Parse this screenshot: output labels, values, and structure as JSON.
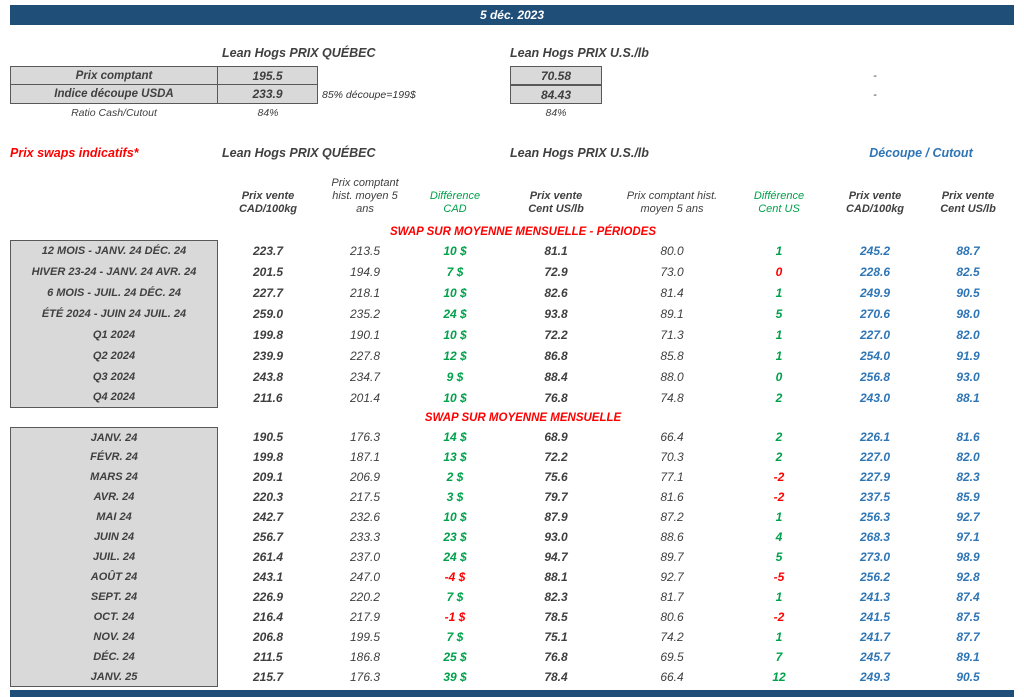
{
  "colors": {
    "navy": "#1F4E79",
    "gray": "#D9D9D9",
    "green": "#00A14B",
    "red": "#FF0000",
    "blue": "#2E75B6"
  },
  "page": {
    "date": "5 déc. 2023"
  },
  "spot": {
    "quebec_title": "Lean Hogs PRIX QUÉBEC",
    "us_title": "Lean Hogs PRIX U.S./lb",
    "rows": [
      {
        "label": "Prix comptant",
        "qc": "195.5",
        "note": "",
        "us": "70.58",
        "right": "-"
      },
      {
        "label": "Indice découpe USDA",
        "qc": "233.9",
        "note": "85% découpe=199$",
        "us": "84.43",
        "right": "-"
      },
      {
        "label": "Ratio Cash/Cutout",
        "qc": "84%",
        "note": "",
        "us": "84%",
        "right": ""
      }
    ]
  },
  "swaps": {
    "title": "Prix swaps indicatifs*",
    "quebec_title": "Lean Hogs PRIX QUÉBEC",
    "us_title": "Lean Hogs PRIX U.S./lb",
    "cutout_title": "Découpe / Cutout",
    "columns": [
      "Prix vente\nCAD/100kg",
      "Prix comptant\nhist. moyen 5\nans",
      "Différence\nCAD",
      "Prix vente\nCent US/lb",
      "Prix comptant hist.\nmoyen 5 ans",
      "Différence\nCent US",
      "Prix vente\nCAD/100kg",
      "Prix vente\nCent US/lb"
    ],
    "sections": [
      {
        "header": "SWAP SUR MOYENNE MENSUELLE - PÉRIODES",
        "rows": [
          {
            "label": "12 MOIS - JANV. 24 DÉC. 24",
            "qc_sell": "223.7",
            "qc_hist": "213.5",
            "diff_cad": "10 $",
            "diff_cad_color": "green",
            "us_sell": "81.1",
            "us_hist": "80.0",
            "diff_us": "1",
            "diff_us_color": "green",
            "cutout_cad": "245.2",
            "cutout_us": "88.7"
          },
          {
            "label": "HIVER 23-24 -  JANV. 24 AVR. 24",
            "qc_sell": "201.5",
            "qc_hist": "194.9",
            "diff_cad": "7 $",
            "diff_cad_color": "green",
            "us_sell": "72.9",
            "us_hist": "73.0",
            "diff_us": "0",
            "diff_us_color": "red",
            "cutout_cad": "228.6",
            "cutout_us": "82.5"
          },
          {
            "label": "6 MOIS -  JUIL. 24 DÉC. 24",
            "qc_sell": "227.7",
            "qc_hist": "218.1",
            "diff_cad": "10 $",
            "diff_cad_color": "green",
            "us_sell": "82.6",
            "us_hist": "81.4",
            "diff_us": "1",
            "diff_us_color": "green",
            "cutout_cad": "249.9",
            "cutout_us": "90.5"
          },
          {
            "label": "ÉTÉ 2024 - JUIN 24 JUIL. 24",
            "qc_sell": "259.0",
            "qc_hist": "235.2",
            "diff_cad": "24 $",
            "diff_cad_color": "green",
            "us_sell": "93.8",
            "us_hist": "89.1",
            "diff_us": "5",
            "diff_us_color": "green",
            "cutout_cad": "270.6",
            "cutout_us": "98.0"
          },
          {
            "label": "Q1 2024",
            "qc_sell": "199.8",
            "qc_hist": "190.1",
            "diff_cad": "10 $",
            "diff_cad_color": "green",
            "us_sell": "72.2",
            "us_hist": "71.3",
            "diff_us": "1",
            "diff_us_color": "green",
            "cutout_cad": "227.0",
            "cutout_us": "82.0"
          },
          {
            "label": "Q2 2024",
            "qc_sell": "239.9",
            "qc_hist": "227.8",
            "diff_cad": "12 $",
            "diff_cad_color": "green",
            "us_sell": "86.8",
            "us_hist": "85.8",
            "diff_us": "1",
            "diff_us_color": "green",
            "cutout_cad": "254.0",
            "cutout_us": "91.9"
          },
          {
            "label": "Q3 2024",
            "qc_sell": "243.8",
            "qc_hist": "234.7",
            "diff_cad": "9 $",
            "diff_cad_color": "green",
            "us_sell": "88.4",
            "us_hist": "88.0",
            "diff_us": "0",
            "diff_us_color": "green",
            "cutout_cad": "256.8",
            "cutout_us": "93.0"
          },
          {
            "label": "Q4 2024",
            "qc_sell": "211.6",
            "qc_hist": "201.4",
            "diff_cad": "10 $",
            "diff_cad_color": "green",
            "us_sell": "76.8",
            "us_hist": "74.8",
            "diff_us": "2",
            "diff_us_color": "green",
            "cutout_cad": "243.0",
            "cutout_us": "88.1"
          }
        ]
      },
      {
        "header": "SWAP SUR MOYENNE MENSUELLE",
        "rows": [
          {
            "label": "JANV. 24",
            "qc_sell": "190.5",
            "qc_hist": "176.3",
            "diff_cad": "14 $",
            "diff_cad_color": "green",
            "us_sell": "68.9",
            "us_hist": "66.4",
            "diff_us": "2",
            "diff_us_color": "green",
            "cutout_cad": "226.1",
            "cutout_us": "81.6"
          },
          {
            "label": "FÉVR. 24",
            "qc_sell": "199.8",
            "qc_hist": "187.1",
            "diff_cad": "13 $",
            "diff_cad_color": "green",
            "us_sell": "72.2",
            "us_hist": "70.3",
            "diff_us": "2",
            "diff_us_color": "green",
            "cutout_cad": "227.0",
            "cutout_us": "82.0"
          },
          {
            "label": "MARS 24",
            "qc_sell": "209.1",
            "qc_hist": "206.9",
            "diff_cad": "2 $",
            "diff_cad_color": "green",
            "us_sell": "75.6",
            "us_hist": "77.1",
            "diff_us": "-2",
            "diff_us_color": "red",
            "cutout_cad": "227.9",
            "cutout_us": "82.3"
          },
          {
            "label": "AVR. 24",
            "qc_sell": "220.3",
            "qc_hist": "217.5",
            "diff_cad": "3 $",
            "diff_cad_color": "green",
            "us_sell": "79.7",
            "us_hist": "81.6",
            "diff_us": "-2",
            "diff_us_color": "red",
            "cutout_cad": "237.5",
            "cutout_us": "85.9"
          },
          {
            "label": "MAI 24",
            "qc_sell": "242.7",
            "qc_hist": "232.6",
            "diff_cad": "10 $",
            "diff_cad_color": "green",
            "us_sell": "87.9",
            "us_hist": "87.2",
            "diff_us": "1",
            "diff_us_color": "green",
            "cutout_cad": "256.3",
            "cutout_us": "92.7"
          },
          {
            "label": "JUIN 24",
            "qc_sell": "256.7",
            "qc_hist": "233.3",
            "diff_cad": "23 $",
            "diff_cad_color": "green",
            "us_sell": "93.0",
            "us_hist": "88.6",
            "diff_us": "4",
            "diff_us_color": "green",
            "cutout_cad": "268.3",
            "cutout_us": "97.1"
          },
          {
            "label": "JUIL. 24",
            "qc_sell": "261.4",
            "qc_hist": "237.0",
            "diff_cad": "24 $",
            "diff_cad_color": "green",
            "us_sell": "94.7",
            "us_hist": "89.7",
            "diff_us": "5",
            "diff_us_color": "green",
            "cutout_cad": "273.0",
            "cutout_us": "98.9"
          },
          {
            "label": "AOÛT 24",
            "qc_sell": "243.1",
            "qc_hist": "247.0",
            "diff_cad": "-4 $",
            "diff_cad_color": "red",
            "us_sell": "88.1",
            "us_hist": "92.7",
            "diff_us": "-5",
            "diff_us_color": "red",
            "cutout_cad": "256.2",
            "cutout_us": "92.8"
          },
          {
            "label": "SEPT. 24",
            "qc_sell": "226.9",
            "qc_hist": "220.2",
            "diff_cad": "7 $",
            "diff_cad_color": "green",
            "us_sell": "82.3",
            "us_hist": "81.7",
            "diff_us": "1",
            "diff_us_color": "green",
            "cutout_cad": "241.3",
            "cutout_us": "87.4"
          },
          {
            "label": "OCT. 24",
            "qc_sell": "216.4",
            "qc_hist": "217.9",
            "diff_cad": "-1 $",
            "diff_cad_color": "red",
            "us_sell": "78.5",
            "us_hist": "80.6",
            "diff_us": "-2",
            "diff_us_color": "red",
            "cutout_cad": "241.5",
            "cutout_us": "87.5"
          },
          {
            "label": "NOV. 24",
            "qc_sell": "206.8",
            "qc_hist": "199.5",
            "diff_cad": "7 $",
            "diff_cad_color": "green",
            "us_sell": "75.1",
            "us_hist": "74.2",
            "diff_us": "1",
            "diff_us_color": "green",
            "cutout_cad": "241.7",
            "cutout_us": "87.7"
          },
          {
            "label": "DÉC. 24",
            "qc_sell": "211.5",
            "qc_hist": "186.8",
            "diff_cad": "25 $",
            "diff_cad_color": "green",
            "us_sell": "76.8",
            "us_hist": "69.5",
            "diff_us": "7",
            "diff_us_color": "green",
            "cutout_cad": "245.7",
            "cutout_us": "89.1"
          },
          {
            "label": "JANV. 25",
            "qc_sell": "215.7",
            "qc_hist": "176.3",
            "diff_cad": "39 $",
            "diff_cad_color": "green",
            "us_sell": "78.4",
            "us_hist": "66.4",
            "diff_us": "12",
            "diff_us_color": "green",
            "cutout_cad": "249.3",
            "cutout_us": "90.5"
          }
        ]
      }
    ]
  }
}
